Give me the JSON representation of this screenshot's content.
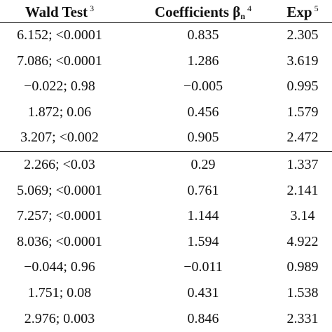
{
  "table": {
    "header": [
      {
        "text": "Wald Test",
        "sup": "3"
      },
      {
        "text": "Coefficients β",
        "sub": "n",
        "sup": "4"
      },
      {
        "text": "Exp",
        "sup": "5"
      }
    ],
    "groups": [
      [
        [
          "6.152; <0.0001",
          "0.835",
          "2.305"
        ],
        [
          "7.086; <0.0001",
          "1.286",
          "3.619"
        ],
        [
          "−0.022; 0.98",
          "−0.005",
          "0.995"
        ],
        [
          "1.872; 0.06",
          "0.456",
          "1.579"
        ],
        [
          "3.207; <0.002",
          "0.905",
          "2.472"
        ]
      ],
      [
        [
          "2.266; <0.03",
          "0.29",
          "1.337"
        ],
        [
          "5.069; <0.0001",
          "0.761",
          "2.141"
        ],
        [
          "7.257; <0.0001",
          "1.144",
          "3.14"
        ],
        [
          "8.036; <0.0001",
          "1.594",
          "4.922"
        ],
        [
          "−0.044; 0.96",
          "−0.011",
          "0.989"
        ],
        [
          "1.751; 0.08",
          "0.431",
          "1.538"
        ],
        [
          "2.976; 0.003",
          "0.846",
          "2.331"
        ]
      ]
    ]
  }
}
